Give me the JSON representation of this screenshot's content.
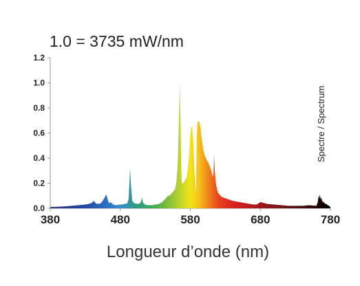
{
  "chart_data": {
    "type": "area",
    "title": "1.0 = 3735 mW/nm",
    "xlabel": "Longueur d’onde (nm)",
    "ylabel": "",
    "series_label": "Spectre / Spectrum",
    "xlim": [
      380,
      780
    ],
    "ylim": [
      0,
      1.2
    ],
    "x_ticks": [
      380,
      480,
      580,
      680,
      780
    ],
    "y_ticks": [
      0.0,
      0.2,
      0.4,
      0.6,
      0.8,
      1.0,
      1.2
    ],
    "x_tick_labels": [
      "380",
      "480",
      "580",
      "680",
      "780"
    ],
    "y_tick_labels": [
      "0.0",
      "0.2",
      "0.4",
      "0.6",
      "0.8",
      "1.0",
      "1.2"
    ],
    "grid": false,
    "legend": "none",
    "colors": {
      "axis": "#999999",
      "text": "#222222",
      "ir_tail": "#000000"
    },
    "series": [
      {
        "x": [
          380,
          390,
          400,
          410,
          420,
          430,
          435,
          440,
          442,
          445,
          448,
          452,
          455,
          458,
          460,
          462,
          464,
          466,
          470,
          475,
          478,
          482,
          486,
          490,
          492,
          493,
          494,
          495,
          497,
          500,
          505,
          508,
          510,
          511,
          512,
          515,
          520,
          525,
          530,
          535,
          540,
          545,
          548,
          550,
          552,
          555,
          558,
          560,
          562,
          564,
          565,
          566,
          567,
          568,
          570,
          572,
          575,
          578,
          580,
          582,
          584,
          586,
          588,
          589,
          590,
          592,
          594,
          595,
          596,
          597,
          598,
          600,
          602,
          604,
          606,
          608,
          610,
          612,
          613,
          614,
          615,
          616,
          618,
          620,
          625,
          630,
          635,
          640,
          645,
          650,
          655,
          660,
          665,
          670,
          675,
          680,
          690,
          700,
          710,
          720,
          730,
          740,
          750,
          760,
          762,
          763,
          764,
          765,
          766,
          767,
          768,
          770,
          772,
          775,
          778,
          780
        ],
        "y": [
          0.01,
          0.012,
          0.015,
          0.02,
          0.025,
          0.03,
          0.035,
          0.045,
          0.06,
          0.04,
          0.035,
          0.04,
          0.06,
          0.09,
          0.11,
          0.07,
          0.04,
          0.05,
          0.03,
          0.025,
          0.03,
          0.03,
          0.035,
          0.04,
          0.08,
          0.2,
          0.32,
          0.2,
          0.06,
          0.04,
          0.035,
          0.04,
          0.06,
          0.09,
          0.05,
          0.03,
          0.025,
          0.025,
          0.03,
          0.035,
          0.05,
          0.08,
          0.1,
          0.1,
          0.11,
          0.13,
          0.15,
          0.2,
          0.35,
          0.75,
          1.0,
          0.7,
          0.3,
          0.2,
          0.2,
          0.22,
          0.25,
          0.4,
          0.6,
          0.66,
          0.55,
          0.3,
          0.12,
          0.55,
          0.68,
          0.7,
          0.66,
          0.62,
          0.56,
          0.52,
          0.48,
          0.43,
          0.4,
          0.38,
          0.36,
          0.33,
          0.3,
          0.25,
          0.28,
          0.43,
          0.3,
          0.22,
          0.15,
          0.12,
          0.09,
          0.08,
          0.07,
          0.06,
          0.055,
          0.05,
          0.045,
          0.04,
          0.035,
          0.03,
          0.03,
          0.05,
          0.035,
          0.03,
          0.025,
          0.02,
          0.02,
          0.02,
          0.025,
          0.02,
          0.05,
          0.1,
          0.08,
          0.11,
          0.07,
          0.09,
          0.06,
          0.05,
          0.04,
          0.03,
          0.02,
          0.01
        ]
      }
    ]
  }
}
